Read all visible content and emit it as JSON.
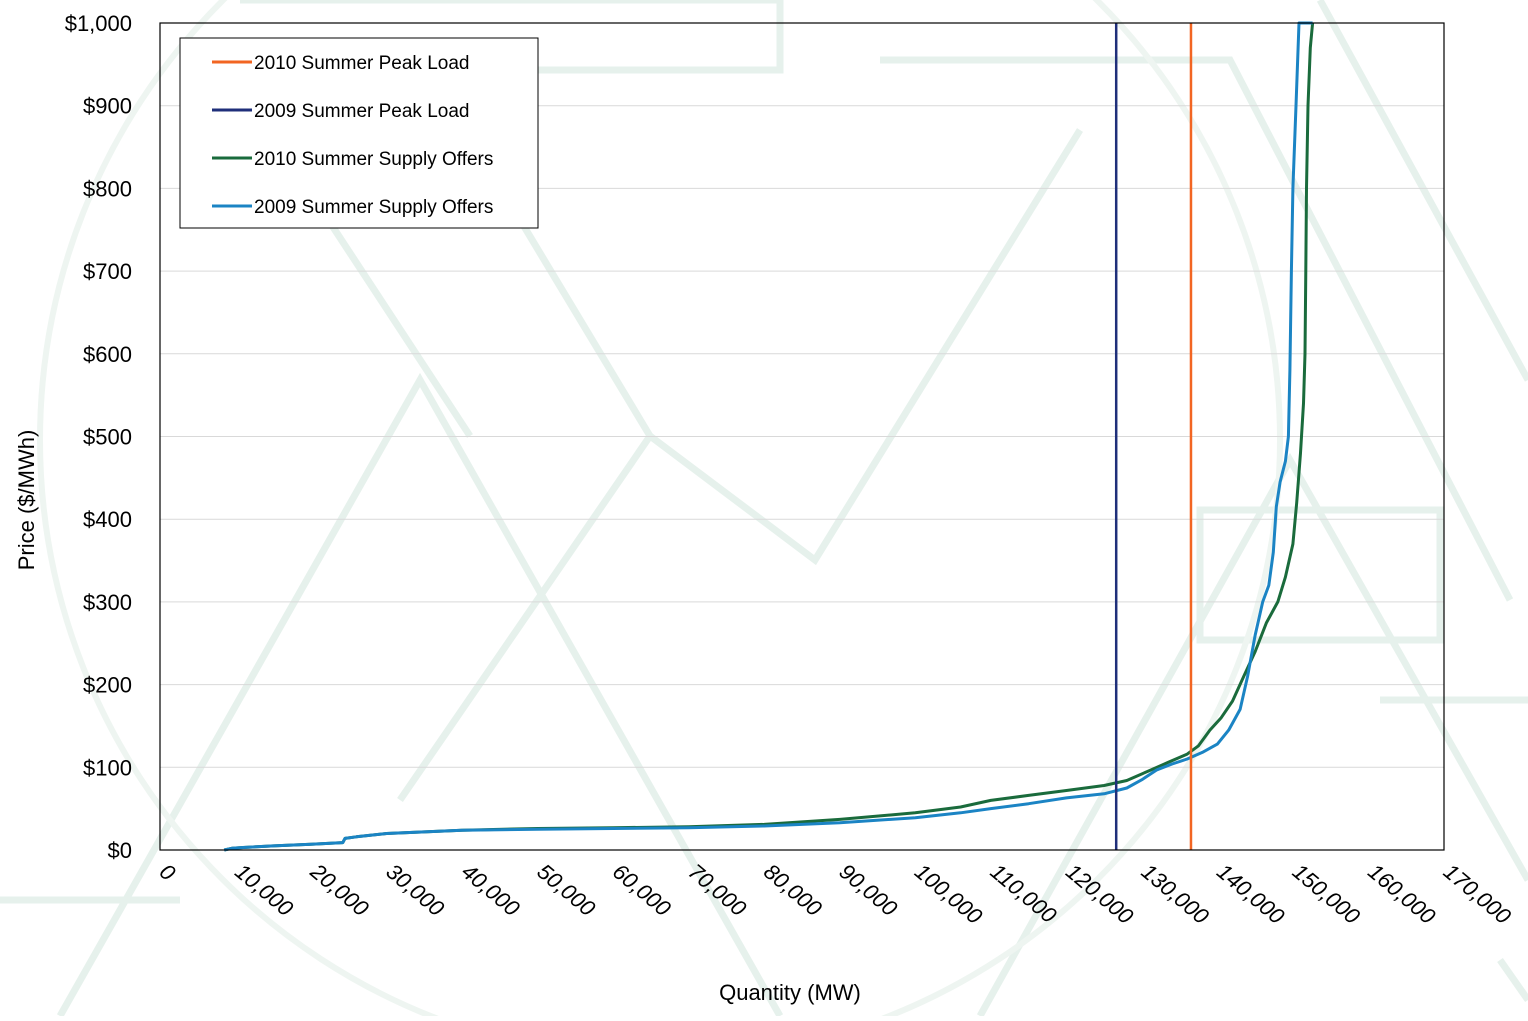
{
  "chart_data": {
    "type": "line",
    "title": "",
    "xlabel": "Quantity (MW)",
    "ylabel": "Price ($/MWh)",
    "xlim": [
      0,
      170000
    ],
    "ylim": [
      0,
      1000
    ],
    "x_ticks": [
      0,
      10000,
      20000,
      30000,
      40000,
      50000,
      60000,
      70000,
      80000,
      90000,
      100000,
      110000,
      120000,
      130000,
      140000,
      150000,
      160000,
      170000
    ],
    "x_tick_labels": [
      "0",
      "10,000",
      "20,000",
      "30,000",
      "40,000",
      "50,000",
      "60,000",
      "70,000",
      "80,000",
      "90,000",
      "100,000",
      "110,000",
      "120,000",
      "130,000",
      "140,000",
      "150,000",
      "160,000",
      "170,000"
    ],
    "y_ticks": [
      0,
      100,
      200,
      300,
      400,
      500,
      600,
      700,
      800,
      900,
      1000
    ],
    "y_tick_labels": [
      "$0",
      "$100",
      "$200",
      "$300",
      "$400",
      "$500",
      "$600",
      "$700",
      "$800",
      "$900",
      "$1,000"
    ],
    "grid": "horizontal",
    "legend_position": "top-left",
    "legend": [
      "2010 Summer Peak Load",
      "2009 Summer Peak Load",
      "2010 Summer Supply Offers",
      "2009 Summer Supply Offers"
    ],
    "vertical_lines": [
      {
        "name": "2010 Summer Peak Load",
        "x": 136500,
        "color": "#f26522"
      },
      {
        "name": "2009 Summer Peak Load",
        "x": 126600,
        "color": "#1f2f7a"
      }
    ],
    "series": [
      {
        "name": "2010 Summer Supply Offers",
        "color": "#1a6b3c",
        "points": [
          [
            8500,
            0
          ],
          [
            9500,
            2
          ],
          [
            11000,
            3
          ],
          [
            15000,
            5
          ],
          [
            20000,
            7
          ],
          [
            24200,
            9
          ],
          [
            24500,
            14
          ],
          [
            26000,
            16
          ],
          [
            30000,
            20
          ],
          [
            40000,
            24
          ],
          [
            50000,
            26
          ],
          [
            60000,
            27
          ],
          [
            70000,
            28
          ],
          [
            80000,
            31
          ],
          [
            90000,
            37
          ],
          [
            100000,
            45
          ],
          [
            106000,
            52
          ],
          [
            110000,
            60
          ],
          [
            115000,
            66
          ],
          [
            120000,
            72
          ],
          [
            125000,
            78
          ],
          [
            128000,
            84
          ],
          [
            131000,
            96
          ],
          [
            133500,
            106
          ],
          [
            136000,
            116
          ],
          [
            137500,
            126
          ],
          [
            139000,
            145
          ],
          [
            140500,
            160
          ],
          [
            142000,
            180
          ],
          [
            143500,
            210
          ],
          [
            145000,
            240
          ],
          [
            146500,
            275
          ],
          [
            148000,
            300
          ],
          [
            149000,
            330
          ],
          [
            150000,
            370
          ],
          [
            150500,
            420
          ],
          [
            151000,
            480
          ],
          [
            151400,
            540
          ],
          [
            151600,
            600
          ],
          [
            151700,
            700
          ],
          [
            151800,
            800
          ],
          [
            152000,
            900
          ],
          [
            152300,
            970
          ],
          [
            152600,
            1000
          ]
        ]
      },
      {
        "name": "2009 Summer Supply Offers",
        "color": "#1b84c4",
        "points": [
          [
            8500,
            0
          ],
          [
            9500,
            2
          ],
          [
            11000,
            3
          ],
          [
            15000,
            5
          ],
          [
            20000,
            7
          ],
          [
            24200,
            9
          ],
          [
            24500,
            14
          ],
          [
            26000,
            16
          ],
          [
            30000,
            20
          ],
          [
            40000,
            24
          ],
          [
            50000,
            25
          ],
          [
            60000,
            26
          ],
          [
            70000,
            27
          ],
          [
            80000,
            29
          ],
          [
            90000,
            33
          ],
          [
            100000,
            39
          ],
          [
            106000,
            45
          ],
          [
            110000,
            50
          ],
          [
            115000,
            56
          ],
          [
            120000,
            63
          ],
          [
            125000,
            68
          ],
          [
            128000,
            75
          ],
          [
            130000,
            85
          ],
          [
            132000,
            97
          ],
          [
            134000,
            104
          ],
          [
            136000,
            110
          ],
          [
            138000,
            118
          ],
          [
            140000,
            128
          ],
          [
            141500,
            145
          ],
          [
            143000,
            170
          ],
          [
            144000,
            210
          ],
          [
            145000,
            260
          ],
          [
            146000,
            300
          ],
          [
            146800,
            320
          ],
          [
            147400,
            360
          ],
          [
            147800,
            415
          ],
          [
            148300,
            445
          ],
          [
            149000,
            470
          ],
          [
            149400,
            500
          ],
          [
            149600,
            580
          ],
          [
            149800,
            700
          ],
          [
            150000,
            800
          ],
          [
            150400,
            900
          ],
          [
            150800,
            1000
          ],
          [
            152600,
            1000
          ]
        ]
      }
    ]
  }
}
